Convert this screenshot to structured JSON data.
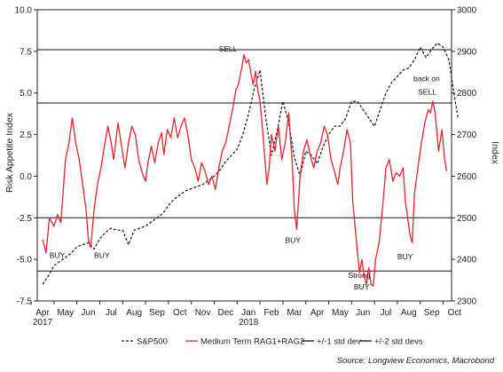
{
  "chart_data": {
    "type": "line",
    "ylabel_left": "Risk Appetite Index",
    "ylabel_right": "Index",
    "y_left": {
      "range": [
        -7.5,
        10.0
      ],
      "ticks": [
        "-7.5",
        "-5.0",
        "-2.5",
        "0.0",
        "2.5",
        "5.0",
        "7.5",
        "10.0"
      ]
    },
    "y_right": {
      "range": [
        2300,
        3000
      ],
      "ticks": [
        "2300",
        "2400",
        "2500",
        "2600",
        "2700",
        "2800",
        "2900",
        "3000"
      ]
    },
    "x_months": [
      "Apr",
      "May",
      "Jun",
      "Jul",
      "Aug",
      "Sep",
      "Oct",
      "Nov",
      "Dec",
      "Jan",
      "Feb",
      "Mar",
      "Apr",
      "May",
      "Jun",
      "Jul",
      "Aug",
      "Sep",
      "Oct"
    ],
    "year_labels": [
      {
        "month_index": 0,
        "text": "2017"
      },
      {
        "month_index": 9,
        "text": "2018"
      }
    ],
    "reference_lines": [
      {
        "name": "+/-1 std dev",
        "values": [
          4.4,
          -2.5
        ]
      },
      {
        "name": "+/-2 std devs",
        "values": [
          7.6,
          -5.7
        ]
      }
    ],
    "series": [
      {
        "name": "S&P500",
        "axis": "right",
        "style": "dashed",
        "color": "#111111",
        "points": [
          [
            0,
            2340
          ],
          [
            0.25,
            2360
          ],
          [
            0.5,
            2385
          ],
          [
            0.75,
            2395
          ],
          [
            1.0,
            2405
          ],
          [
            1.25,
            2415
          ],
          [
            1.5,
            2430
          ],
          [
            1.75,
            2435
          ],
          [
            2.0,
            2440
          ],
          [
            2.25,
            2425
          ],
          [
            2.5,
            2450
          ],
          [
            2.75,
            2465
          ],
          [
            3.0,
            2475
          ],
          [
            3.25,
            2470
          ],
          [
            3.5,
            2470
          ],
          [
            3.75,
            2435
          ],
          [
            4.0,
            2470
          ],
          [
            4.25,
            2475
          ],
          [
            4.5,
            2480
          ],
          [
            4.75,
            2490
          ],
          [
            5.0,
            2500
          ],
          [
            5.25,
            2510
          ],
          [
            5.5,
            2530
          ],
          [
            5.75,
            2545
          ],
          [
            6.0,
            2555
          ],
          [
            6.25,
            2565
          ],
          [
            6.5,
            2570
          ],
          [
            6.75,
            2575
          ],
          [
            7.0,
            2580
          ],
          [
            7.25,
            2590
          ],
          [
            7.5,
            2600
          ],
          [
            7.75,
            2615
          ],
          [
            8.0,
            2635
          ],
          [
            8.25,
            2650
          ],
          [
            8.5,
            2665
          ],
          [
            8.75,
            2700
          ],
          [
            9.0,
            2750
          ],
          [
            9.25,
            2810
          ],
          [
            9.5,
            2855
          ],
          [
            9.75,
            2740
          ],
          [
            10.0,
            2650
          ],
          [
            10.25,
            2710
          ],
          [
            10.5,
            2780
          ],
          [
            10.75,
            2730
          ],
          [
            11.0,
            2645
          ],
          [
            11.25,
            2600
          ],
          [
            11.5,
            2660
          ],
          [
            11.75,
            2650
          ],
          [
            12.0,
            2630
          ],
          [
            12.25,
            2670
          ],
          [
            12.5,
            2700
          ],
          [
            12.75,
            2720
          ],
          [
            13.0,
            2720
          ],
          [
            13.25,
            2740
          ],
          [
            13.5,
            2780
          ],
          [
            13.75,
            2780
          ],
          [
            14.0,
            2760
          ],
          [
            14.25,
            2740
          ],
          [
            14.5,
            2720
          ],
          [
            14.75,
            2760
          ],
          [
            15.0,
            2800
          ],
          [
            15.25,
            2825
          ],
          [
            15.5,
            2840
          ],
          [
            15.75,
            2855
          ],
          [
            16.0,
            2860
          ],
          [
            16.25,
            2880
          ],
          [
            16.5,
            2910
          ],
          [
            16.75,
            2885
          ],
          [
            17.0,
            2905
          ],
          [
            17.25,
            2920
          ],
          [
            17.5,
            2910
          ],
          [
            17.75,
            2880
          ],
          [
            18.0,
            2790
          ],
          [
            18.15,
            2740
          ]
        ]
      },
      {
        "name": "Medium Term RAG1+RAG2",
        "axis": "left",
        "style": "solid",
        "color": "#e8232a",
        "points": [
          [
            0,
            -3.8
          ],
          [
            0.15,
            -4.6
          ],
          [
            0.3,
            -2.5
          ],
          [
            0.5,
            -3.0
          ],
          [
            0.65,
            -2.3
          ],
          [
            0.8,
            -2.8
          ],
          [
            1.0,
            1.0
          ],
          [
            1.15,
            2.0
          ],
          [
            1.3,
            3.5
          ],
          [
            1.45,
            2.0
          ],
          [
            1.6,
            1.0
          ],
          [
            1.75,
            -0.5
          ],
          [
            1.9,
            -2.0
          ],
          [
            2.0,
            -3.8
          ],
          [
            2.1,
            -4.3
          ],
          [
            2.25,
            -2.0
          ],
          [
            2.4,
            -0.5
          ],
          [
            2.55,
            0.5
          ],
          [
            2.7,
            1.8
          ],
          [
            2.85,
            3.0
          ],
          [
            3.0,
            2.0
          ],
          [
            3.1,
            1.0
          ],
          [
            3.3,
            3.2
          ],
          [
            3.45,
            1.8
          ],
          [
            3.6,
            0.5
          ],
          [
            3.75,
            2.0
          ],
          [
            3.9,
            3.0
          ],
          [
            4.05,
            2.5
          ],
          [
            4.2,
            1.0
          ],
          [
            4.35,
            0.2
          ],
          [
            4.5,
            -0.3
          ],
          [
            4.6,
            0.8
          ],
          [
            4.75,
            1.8
          ],
          [
            4.9,
            0.8
          ],
          [
            5.05,
            2.0
          ],
          [
            5.2,
            2.6
          ],
          [
            5.3,
            1.3
          ],
          [
            5.45,
            2.8
          ],
          [
            5.6,
            2.3
          ],
          [
            5.75,
            3.5
          ],
          [
            5.9,
            2.3
          ],
          [
            6.05,
            3.0
          ],
          [
            6.2,
            3.5
          ],
          [
            6.35,
            2.5
          ],
          [
            6.5,
            1.0
          ],
          [
            6.65,
            0.5
          ],
          [
            6.8,
            -0.3
          ],
          [
            6.95,
            0.8
          ],
          [
            7.1,
            0.3
          ],
          [
            7.25,
            -0.5
          ],
          [
            7.4,
            0.0
          ],
          [
            7.55,
            -0.8
          ],
          [
            7.7,
            0.5
          ],
          [
            7.85,
            1.5
          ],
          [
            8.0,
            2.0
          ],
          [
            8.15,
            3.0
          ],
          [
            8.3,
            4.0
          ],
          [
            8.45,
            5.2
          ],
          [
            8.55,
            5.5
          ],
          [
            8.7,
            6.5
          ],
          [
            8.8,
            7.3
          ],
          [
            8.9,
            6.8
          ],
          [
            9.0,
            7.0
          ],
          [
            9.1,
            6.2
          ],
          [
            9.2,
            5.5
          ],
          [
            9.3,
            6.3
          ],
          [
            9.4,
            5.2
          ],
          [
            9.5,
            4.5
          ],
          [
            9.6,
            3.0
          ],
          [
            9.7,
            1.2
          ],
          [
            9.8,
            -0.5
          ],
          [
            9.9,
            0.5
          ],
          [
            10.0,
            2.5
          ],
          [
            10.15,
            1.5
          ],
          [
            10.3,
            3.0
          ],
          [
            10.45,
            1.0
          ],
          [
            10.6,
            2.0
          ],
          [
            10.75,
            3.8
          ],
          [
            10.9,
            1.0
          ],
          [
            11.0,
            -2.0
          ],
          [
            11.1,
            -3.2
          ],
          [
            11.25,
            0.0
          ],
          [
            11.4,
            1.5
          ],
          [
            11.55,
            2.2
          ],
          [
            11.7,
            1.2
          ],
          [
            11.85,
            0.5
          ],
          [
            12.0,
            1.5
          ],
          [
            12.15,
            2.0
          ],
          [
            12.3,
            3.0
          ],
          [
            12.45,
            2.5
          ],
          [
            12.6,
            1.0
          ],
          [
            12.75,
            0.3
          ],
          [
            12.9,
            -0.5
          ],
          [
            13.0,
            0.5
          ],
          [
            13.15,
            1.5
          ],
          [
            13.3,
            2.8
          ],
          [
            13.45,
            2.0
          ],
          [
            13.55,
            -1.5
          ],
          [
            13.65,
            -3.0
          ],
          [
            13.75,
            -4.5
          ],
          [
            13.85,
            -5.8
          ],
          [
            13.95,
            -5.0
          ],
          [
            14.05,
            -6.0
          ],
          [
            14.15,
            -6.5
          ],
          [
            14.25,
            -5.5
          ],
          [
            14.35,
            -6.5
          ],
          [
            14.45,
            -6.6
          ],
          [
            14.55,
            -5.0
          ],
          [
            14.7,
            -4.0
          ],
          [
            14.85,
            -2.0
          ],
          [
            15.0,
            0.5
          ],
          [
            15.15,
            1.0
          ],
          [
            15.3,
            -0.3
          ],
          [
            15.45,
            0.2
          ],
          [
            15.6,
            0.0
          ],
          [
            15.75,
            0.5
          ],
          [
            15.85,
            -1.5
          ],
          [
            15.95,
            -2.5
          ],
          [
            16.05,
            -3.5
          ],
          [
            16.15,
            -4.0
          ],
          [
            16.25,
            -1.0
          ],
          [
            16.4,
            0.5
          ],
          [
            16.55,
            2.0
          ],
          [
            16.7,
            3.2
          ],
          [
            16.85,
            4.0
          ],
          [
            16.95,
            3.8
          ],
          [
            17.05,
            4.5
          ],
          [
            17.15,
            3.8
          ],
          [
            17.3,
            1.5
          ],
          [
            17.45,
            2.8
          ],
          [
            17.55,
            1.2
          ],
          [
            17.65,
            0.3
          ]
        ]
      }
    ],
    "annotations": [
      {
        "text": "SELL",
        "month": 8.1,
        "value": 7.5,
        "anchor": "middle"
      },
      {
        "text": "BUY",
        "month": 0.3,
        "value": -4.9,
        "anchor": "start"
      },
      {
        "text": "BUY",
        "month": 2.25,
        "value": -4.9,
        "anchor": "start"
      },
      {
        "text": "BUY",
        "month": 10.6,
        "value": -4.0,
        "anchor": "start"
      },
      {
        "text": "Strong",
        "month": 13.35,
        "value": -6.1,
        "anchor": "start"
      },
      {
        "text": "BUY",
        "month": 13.6,
        "value": -6.8,
        "anchor": "start"
      },
      {
        "text": "BUY",
        "month": 15.5,
        "value": -5.0,
        "anchor": "start"
      },
      {
        "text": "back on",
        "month": 16.2,
        "value": 5.7,
        "anchor": "start"
      },
      {
        "text": "SELL",
        "month": 16.4,
        "value": 4.9,
        "anchor": "start"
      }
    ],
    "legend": {
      "position": "bottom",
      "items": [
        {
          "label": "S&P500",
          "style": "dashed",
          "color": "#111111"
        },
        {
          "label": "Medium Term RAG1+RAG2",
          "style": "solid",
          "color": "#e8232a"
        },
        {
          "label": "+/-1 std dev",
          "style": "solid",
          "color": "#111111"
        },
        {
          "label": "+/-2 std devs",
          "style": "solid",
          "color": "#111111"
        }
      ]
    },
    "grid": false
  },
  "source": "Source: Longview Economics, Macrobond"
}
